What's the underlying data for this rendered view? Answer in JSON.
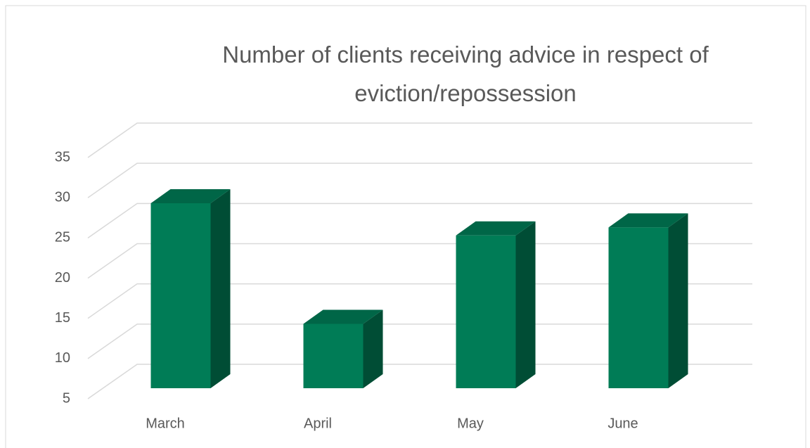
{
  "chart_data": {
    "type": "bar3d",
    "title": "Number of clients receiving advice in respect of eviction/repossession",
    "categories": [
      "March",
      "April",
      "May",
      "June"
    ],
    "values": [
      28,
      13,
      24,
      25
    ],
    "color": "#007c56",
    "ylim": [
      5,
      35
    ],
    "yticks": [
      5,
      10,
      15,
      20,
      25,
      30,
      35
    ],
    "grid": true
  }
}
